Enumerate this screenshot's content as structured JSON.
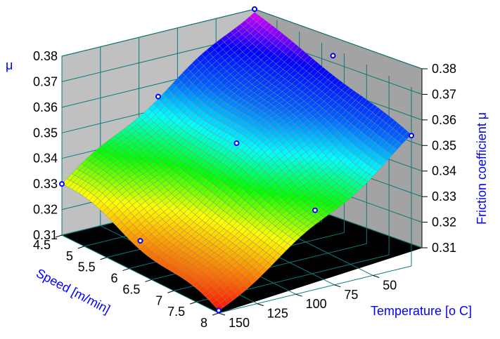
{
  "chart_data": {
    "type": "surface3d",
    "title": "",
    "z_label_left": "μ",
    "z_label_right": "Friction coefficient μ",
    "x_label": "Speed [m/min]",
    "y_label": "Temperature [o C]",
    "x_ticks": [
      "4.5",
      "5",
      "5.5",
      "6",
      "6.5",
      "7",
      "7.5",
      "8"
    ],
    "y_ticks": [
      "50",
      "75",
      "100",
      "125",
      "150"
    ],
    "z_ticks_left": [
      "0.31",
      "0.32",
      "0.33",
      "0.34",
      "0.35",
      "0.36",
      "0.37",
      "0.38"
    ],
    "z_ticks_right": [
      "0.31",
      "0.32",
      "0.33",
      "0.34",
      "0.35",
      "0.36",
      "0.37",
      "0.38"
    ],
    "xlim": [
      4.5,
      8
    ],
    "ylim": [
      25,
      150
    ],
    "zlim": [
      0.31,
      0.38
    ],
    "colormap": [
      "#ff0000",
      "#ff8000",
      "#ffff00",
      "#00ff00",
      "#00ffff",
      "#0060ff",
      "#0000ff",
      "#ff00ff"
    ],
    "surface_corners": [
      {
        "speed": 4.5,
        "temperature": 150,
        "mu": 0.33
      },
      {
        "speed": 4.5,
        "temperature": 25,
        "mu": 0.38
      },
      {
        "speed": 8,
        "temperature": 25,
        "mu": 0.36
      },
      {
        "speed": 8,
        "temperature": 150,
        "mu": 0.31
      }
    ],
    "measured_points": [
      {
        "speed": 4.5,
        "temperature": 150,
        "mu": 0.33
      },
      {
        "speed": 4.5,
        "temperature": 25,
        "mu": 0.38
      },
      {
        "speed": 4.5,
        "temperature": 87.5,
        "mu": 0.355
      },
      {
        "speed": 6.25,
        "temperature": 150,
        "mu": 0.323
      },
      {
        "speed": 6.25,
        "temperature": 25,
        "mu": 0.377
      },
      {
        "speed": 6.25,
        "temperature": 87.5,
        "mu": 0.352
      },
      {
        "speed": 8,
        "temperature": 150,
        "mu": 0.311
      },
      {
        "speed": 8,
        "temperature": 25,
        "mu": 0.361
      },
      {
        "speed": 8,
        "temperature": 87.5,
        "mu": 0.341
      }
    ],
    "grid": true
  }
}
